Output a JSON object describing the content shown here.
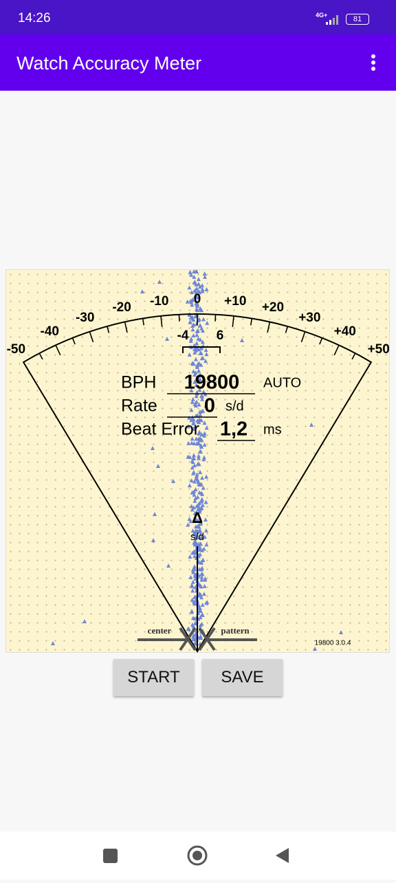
{
  "status_bar": {
    "time": "14:26",
    "network": "4G+",
    "battery": "81"
  },
  "app_bar": {
    "title": "Watch Accuracy Meter"
  },
  "meter": {
    "scale_labels": [
      "-50",
      "-40",
      "-30",
      "-20",
      "-10",
      "0",
      "+10",
      "+20",
      "+30",
      "+40",
      "+50"
    ],
    "bracket_labels": [
      "-4",
      "6"
    ],
    "readouts": {
      "bph": {
        "label": "BPH",
        "value": "19800",
        "mode": "AUTO"
      },
      "rate": {
        "label": "Rate",
        "value": "0",
        "unit": "s/d"
      },
      "beat_error": {
        "label": "Beat Error",
        "value": "1,2",
        "unit": "ms"
      }
    },
    "axis": {
      "symbol": "Δ",
      "unit": "s/d"
    },
    "pattern": {
      "left": "center",
      "right": "pattern"
    },
    "footer": "19800 3.0.4"
  },
  "buttons": {
    "start": "START",
    "save": "SAVE"
  }
}
